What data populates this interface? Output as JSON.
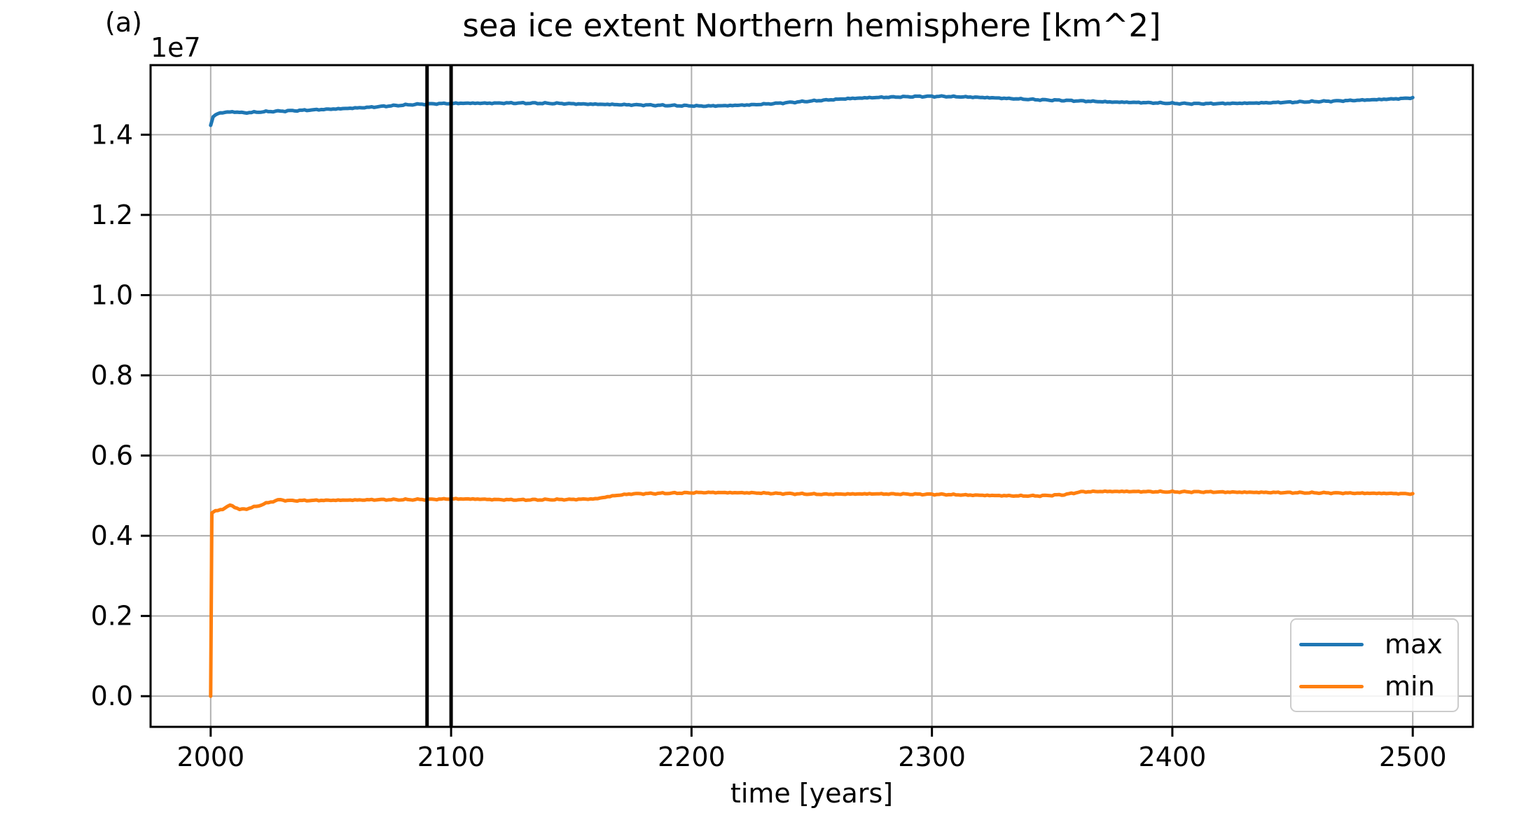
{
  "figure": {
    "panel_label": "(a)",
    "background_color": "#ffffff"
  },
  "chart_data": {
    "type": "line",
    "title": "sea ice extent Northern hemisphere [km^2]",
    "xlabel": "time [years]",
    "ylabel": "",
    "y_offset_text": "1e7",
    "grid": true,
    "xlim": [
      1975,
      2525
    ],
    "ylim_km2": [
      -765000,
      15735000
    ],
    "xticks": [
      2000,
      2100,
      2200,
      2300,
      2400,
      2500
    ],
    "yticks": [
      {
        "value": 0,
        "label": "0.0"
      },
      {
        "value": 2000000,
        "label": "0.2"
      },
      {
        "value": 4000000,
        "label": "0.4"
      },
      {
        "value": 6000000,
        "label": "0.6"
      },
      {
        "value": 8000000,
        "label": "0.8"
      },
      {
        "value": 10000000,
        "label": "1.0"
      },
      {
        "value": 12000000,
        "label": "1.2"
      },
      {
        "value": 14000000,
        "label": "1.4"
      }
    ],
    "style": {
      "grid_color": "#b0b0b0",
      "axis_color": "#000000",
      "tick_label_color": "#000000",
      "legend_border_color": "#cccccc"
    },
    "vlines": {
      "x": [
        2090,
        2100
      ],
      "color": "#000000"
    },
    "legend": {
      "position": "lower right",
      "entries": [
        "max",
        "min"
      ]
    },
    "noise_amplitude_km2": 18000,
    "series": [
      {
        "name": "max",
        "color": "#1f77b4",
        "points": [
          [
            2000,
            14230000
          ],
          [
            2001,
            14450000
          ],
          [
            2003,
            14530000
          ],
          [
            2006,
            14560000
          ],
          [
            2010,
            14570000
          ],
          [
            2014,
            14545000
          ],
          [
            2018,
            14560000
          ],
          [
            2025,
            14580000
          ],
          [
            2035,
            14600000
          ],
          [
            2045,
            14625000
          ],
          [
            2055,
            14650000
          ],
          [
            2065,
            14680000
          ],
          [
            2075,
            14720000
          ],
          [
            2085,
            14755000
          ],
          [
            2095,
            14775000
          ],
          [
            2105,
            14785000
          ],
          [
            2115,
            14785000
          ],
          [
            2125,
            14790000
          ],
          [
            2135,
            14785000
          ],
          [
            2145,
            14780000
          ],
          [
            2155,
            14765000
          ],
          [
            2165,
            14755000
          ],
          [
            2175,
            14745000
          ],
          [
            2185,
            14735000
          ],
          [
            2195,
            14725000
          ],
          [
            2205,
            14715000
          ],
          [
            2215,
            14725000
          ],
          [
            2225,
            14745000
          ],
          [
            2235,
            14780000
          ],
          [
            2245,
            14820000
          ],
          [
            2255,
            14860000
          ],
          [
            2265,
            14900000
          ],
          [
            2275,
            14925000
          ],
          [
            2285,
            14940000
          ],
          [
            2295,
            14955000
          ],
          [
            2305,
            14955000
          ],
          [
            2315,
            14940000
          ],
          [
            2325,
            14920000
          ],
          [
            2335,
            14895000
          ],
          [
            2345,
            14870000
          ],
          [
            2355,
            14855000
          ],
          [
            2365,
            14835000
          ],
          [
            2375,
            14815000
          ],
          [
            2385,
            14805000
          ],
          [
            2395,
            14790000
          ],
          [
            2405,
            14775000
          ],
          [
            2415,
            14775000
          ],
          [
            2425,
            14780000
          ],
          [
            2435,
            14790000
          ],
          [
            2445,
            14805000
          ],
          [
            2455,
            14820000
          ],
          [
            2465,
            14835000
          ],
          [
            2475,
            14855000
          ],
          [
            2485,
            14875000
          ],
          [
            2495,
            14900000
          ],
          [
            2500,
            14920000
          ]
        ]
      },
      {
        "name": "min",
        "color": "#ff7f0e",
        "points": [
          [
            2000,
            0
          ],
          [
            2000.5,
            4580000
          ],
          [
            2002,
            4620000
          ],
          [
            2005,
            4660000
          ],
          [
            2008,
            4765000
          ],
          [
            2010,
            4715000
          ],
          [
            2012,
            4655000
          ],
          [
            2015,
            4670000
          ],
          [
            2020,
            4750000
          ],
          [
            2025,
            4845000
          ],
          [
            2029,
            4900000
          ],
          [
            2032,
            4875000
          ],
          [
            2040,
            4880000
          ],
          [
            2050,
            4885000
          ],
          [
            2060,
            4890000
          ],
          [
            2070,
            4900000
          ],
          [
            2080,
            4900000
          ],
          [
            2090,
            4905000
          ],
          [
            2100,
            4920000
          ],
          [
            2110,
            4915000
          ],
          [
            2120,
            4900000
          ],
          [
            2130,
            4895000
          ],
          [
            2140,
            4900000
          ],
          [
            2150,
            4905000
          ],
          [
            2160,
            4920000
          ],
          [
            2168,
            5000000
          ],
          [
            2175,
            5045000
          ],
          [
            2185,
            5055000
          ],
          [
            2195,
            5065000
          ],
          [
            2205,
            5080000
          ],
          [
            2215,
            5075000
          ],
          [
            2225,
            5070000
          ],
          [
            2235,
            5055000
          ],
          [
            2245,
            5045000
          ],
          [
            2255,
            5035000
          ],
          [
            2265,
            5040000
          ],
          [
            2275,
            5045000
          ],
          [
            2285,
            5040000
          ],
          [
            2295,
            5035000
          ],
          [
            2305,
            5030000
          ],
          [
            2315,
            5015000
          ],
          [
            2325,
            5005000
          ],
          [
            2335,
            4995000
          ],
          [
            2345,
            4995000
          ],
          [
            2355,
            5025000
          ],
          [
            2362,
            5095000
          ],
          [
            2370,
            5105000
          ],
          [
            2380,
            5105000
          ],
          [
            2390,
            5100000
          ],
          [
            2400,
            5095000
          ],
          [
            2410,
            5095000
          ],
          [
            2420,
            5090000
          ],
          [
            2430,
            5085000
          ],
          [
            2440,
            5080000
          ],
          [
            2450,
            5075000
          ],
          [
            2460,
            5070000
          ],
          [
            2470,
            5065000
          ],
          [
            2480,
            5060000
          ],
          [
            2490,
            5055000
          ],
          [
            2500,
            5045000
          ]
        ]
      }
    ]
  }
}
